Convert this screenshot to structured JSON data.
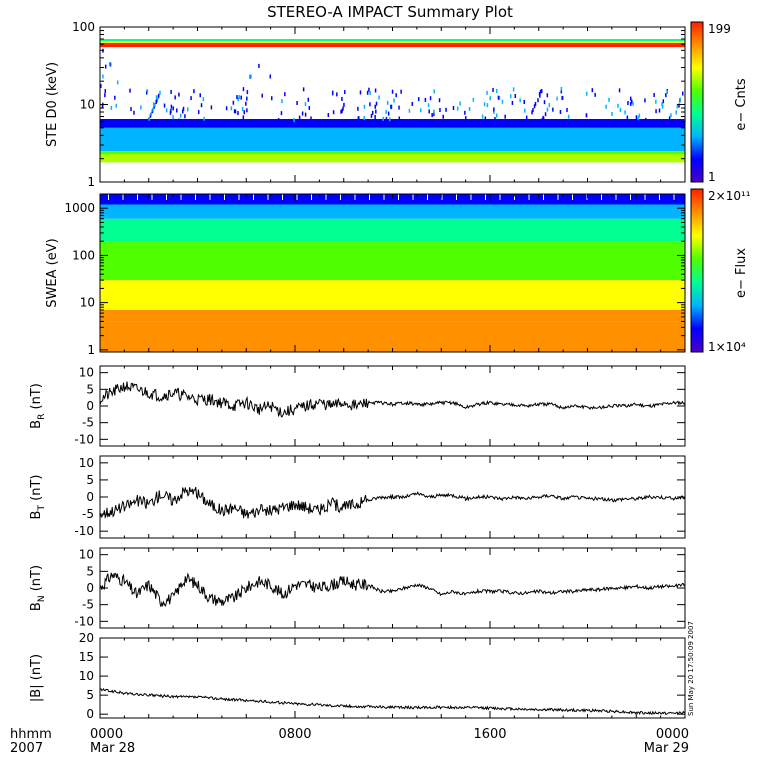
{
  "title": "STEREO-A IMPACT Summary Plot",
  "stamp": "Sun May 20 17:50:09 2007",
  "time_axis": {
    "format_label": "hhmm",
    "year_label": "2007",
    "ticks": [
      {
        "hour": 0,
        "label": "0000",
        "date": "Mar 28"
      },
      {
        "hour": 8,
        "label": "0800",
        "date": ""
      },
      {
        "hour": 16,
        "label": "1600",
        "date": ""
      },
      {
        "hour": 24,
        "label": "0000",
        "date": "Mar 29"
      }
    ],
    "range_hours": [
      0,
      24
    ]
  },
  "chart_data": [
    {
      "type": "heatmap",
      "ylabel": "STE D0 (keV)",
      "yscale": "log",
      "ylim": [
        1,
        100
      ],
      "yticks": [
        {
          "v": 1,
          "label": "1"
        },
        {
          "v": 10,
          "label": "10"
        },
        {
          "v": 100,
          "label": "100"
        }
      ],
      "colorbar": {
        "label": "e− Cnts",
        "max_label": "199",
        "min_label": "1",
        "min": 1,
        "max": 199
      },
      "colors": [
        "#4a00c8",
        "#0000ff",
        "#00b4ff",
        "#00ff90",
        "#50ff00",
        "#ffff00",
        "#ff9000",
        "#ff2000"
      ]
    },
    {
      "type": "heatmap",
      "ylabel": "SWEA (eV)",
      "yscale": "log",
      "ylim": [
        0.9,
        2000
      ],
      "yticks": [
        {
          "v": 1,
          "label": "1"
        },
        {
          "v": 10,
          "label": "10"
        },
        {
          "v": 100,
          "label": "100"
        },
        {
          "v": 1000,
          "label": "1000"
        }
      ],
      "colorbar": {
        "label": "e− Flux",
        "max_label": "2×10¹¹",
        "min_label": "1×10⁴",
        "min": 10000,
        "max": 200000000000
      },
      "colors": [
        "#4a00c8",
        "#0000ff",
        "#00b4ff",
        "#00ff90",
        "#50ff00",
        "#ffff00",
        "#ff9000",
        "#ff2000"
      ]
    },
    {
      "type": "line",
      "ylabel": "B",
      "ysub": "R",
      "yunit": " (nT)",
      "ylim": [
        -12,
        12
      ],
      "yticks": [
        -10,
        -5,
        0,
        5,
        10
      ],
      "series": [
        {
          "x": [
            0,
            0.5,
            1,
            1.5,
            2,
            2.5,
            3,
            3.5,
            4,
            4.5,
            5,
            5.5,
            6,
            6.5,
            7,
            7.5,
            8,
            8.5,
            9,
            9.5,
            10,
            10.5,
            11,
            11.5,
            12,
            12.5,
            13,
            13.5,
            14,
            14.5,
            15,
            15.5,
            16,
            16.5,
            17,
            17.5,
            18,
            18.5,
            19,
            19.5,
            20,
            20.5,
            21,
            21.5,
            22,
            22.5,
            23,
            23.5,
            24
          ],
          "y": [
            2,
            4,
            6,
            5,
            4,
            3,
            4,
            3,
            2,
            2,
            1,
            0,
            1,
            -1,
            0,
            -2,
            -1,
            0,
            1,
            0,
            1,
            0,
            1,
            1,
            0.5,
            1,
            0.5,
            0.5,
            1,
            1,
            -0.5,
            0.5,
            1,
            0.5,
            0.5,
            0,
            0.5,
            0.5,
            -0.5,
            0,
            -0.5,
            -0.5,
            0,
            0,
            0.5,
            0,
            0.5,
            1,
            1
          ]
        }
      ]
    },
    {
      "type": "line",
      "ylabel": "B",
      "ysub": "T",
      "yunit": " (nT)",
      "ylim": [
        -12,
        12
      ],
      "yticks": [
        -10,
        -5,
        0,
        5,
        10
      ],
      "series": [
        {
          "x": [
            0,
            0.5,
            1,
            1.5,
            2,
            2.5,
            3,
            3.5,
            4,
            4.5,
            5,
            5.5,
            6,
            6.5,
            7,
            7.5,
            8,
            8.5,
            9,
            9.5,
            10,
            10.5,
            11,
            11.5,
            12,
            12.5,
            13,
            13.5,
            14,
            14.5,
            15,
            15.5,
            16,
            16.5,
            17,
            17.5,
            18,
            18.5,
            19,
            19.5,
            20,
            20.5,
            21,
            21.5,
            22,
            22.5,
            23,
            23.5,
            24
          ],
          "y": [
            -5,
            -4,
            -3,
            -1,
            -2,
            1,
            -1,
            2,
            1,
            -2,
            -4,
            -3,
            -5,
            -4,
            -4,
            -3,
            -2,
            -3,
            -4,
            -2,
            -3,
            -2,
            -1,
            0,
            0,
            0,
            1,
            0,
            0.5,
            0.5,
            -0.5,
            0,
            0,
            -0.5,
            0,
            -0.5,
            0,
            0.5,
            -0.5,
            0,
            -0.5,
            -0.5,
            -1,
            -0.5,
            -0.5,
            0,
            0,
            -0.5,
            0
          ]
        }
      ]
    },
    {
      "type": "line",
      "ylabel": "B",
      "ysub": "N",
      "yunit": " (nT)",
      "ylim": [
        -12,
        12
      ],
      "yticks": [
        -10,
        -5,
        0,
        5,
        10
      ],
      "series": [
        {
          "x": [
            0,
            0.5,
            1,
            1.5,
            2,
            2.5,
            3,
            3.5,
            4,
            4.5,
            5,
            5.5,
            6,
            6.5,
            7,
            7.5,
            8,
            8.5,
            9,
            9.5,
            10,
            10.5,
            11,
            11.5,
            12,
            12.5,
            13,
            13.5,
            14,
            14.5,
            15,
            15.5,
            16,
            16.5,
            17,
            17.5,
            18,
            18.5,
            19,
            19.5,
            20,
            20.5,
            21,
            21.5,
            22,
            22.5,
            23,
            23.5,
            24
          ],
          "y": [
            0,
            4,
            2,
            -2,
            1,
            -4,
            -3,
            3,
            1,
            -3,
            -4,
            -3,
            0,
            2,
            1,
            -2,
            1,
            1,
            0,
            1,
            2,
            1,
            1,
            -1,
            -1,
            0,
            1,
            0,
            -2,
            -1,
            -2,
            -1,
            -1,
            -1,
            -1.5,
            -1.5,
            -1,
            -1.5,
            -1,
            -1,
            -0.5,
            -0.5,
            0,
            0,
            0.5,
            0,
            0.5,
            0.5,
            1
          ]
        }
      ]
    },
    {
      "type": "line",
      "ylabel": "|B|",
      "ysub": "",
      "yunit": " (nT)",
      "ylim": [
        -1,
        20
      ],
      "yticks": [
        0,
        5,
        10,
        15,
        20
      ],
      "series": [
        {
          "x": [
            0,
            0.5,
            1,
            1.5,
            2,
            2.5,
            3,
            3.5,
            4,
            4.5,
            5,
            5.5,
            6,
            6.5,
            7,
            7.5,
            8,
            8.5,
            9,
            9.5,
            10,
            10.5,
            11,
            11.5,
            12,
            12.5,
            13,
            13.5,
            14,
            14.5,
            15,
            15.5,
            16,
            16.5,
            17,
            17.5,
            18,
            18.5,
            19,
            19.5,
            20,
            20.5,
            21,
            21.5,
            22,
            22.5,
            23,
            23.5,
            24
          ],
          "y": [
            6.5,
            6,
            5.5,
            5.2,
            5,
            4.8,
            4.6,
            4.5,
            4.5,
            4.3,
            4,
            3.8,
            3.6,
            3.4,
            3.2,
            3,
            2.8,
            2.6,
            2.5,
            2.3,
            2.2,
            2,
            2,
            1.9,
            1.8,
            1.8,
            1.7,
            1.8,
            1.8,
            1.8,
            1.7,
            1.7,
            1.6,
            1.5,
            1.4,
            1.3,
            1.2,
            1.2,
            1.1,
            1,
            1,
            0.9,
            0.8,
            0.6,
            0.4,
            0.3,
            0.3,
            0.2,
            0.6
          ]
        }
      ]
    }
  ]
}
